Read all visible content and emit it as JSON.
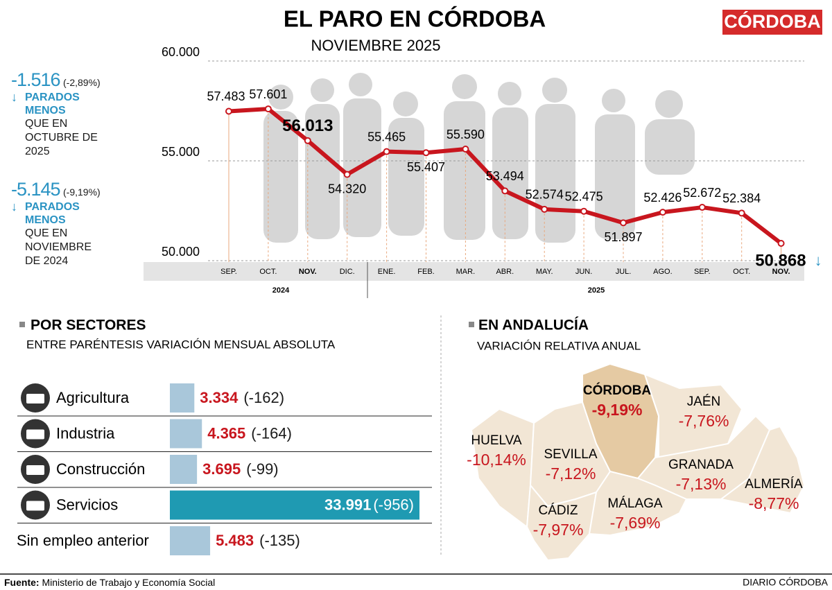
{
  "header": {
    "title": "EL PARO EN CÓRDOBA",
    "subtitle": "NOVIEMBRE 2025",
    "logo": "CÓRDOBA"
  },
  "summary": [
    {
      "value": "-1.516",
      "percent": "(-2,89%)",
      "label": "PARADOS MENOS",
      "detail": "QUE EN OCTUBRE DE 2025"
    },
    {
      "value": "-5.145",
      "percent": "(-9,19%)",
      "label": "PARADOS MENOS",
      "detail": "QUE EN NOVIEMBRE DE 2024"
    }
  ],
  "chart_data": [
    {
      "type": "line",
      "categories": [
        "SEP.",
        "OCT.",
        "NOV.",
        "DIC.",
        "ENE.",
        "FEB.",
        "MAR.",
        "ABR.",
        "MAY.",
        "JUN.",
        "JUL.",
        "AGO.",
        "SEP.",
        "OCT.",
        "NOV."
      ],
      "groups": [
        "2024",
        "2025"
      ],
      "series": [
        {
          "color": "#c8161e",
          "values": [
            57483,
            57601,
            56013,
            54320,
            55465,
            55407,
            55590,
            53494,
            52574,
            52475,
            51897,
            52426,
            52672,
            52384,
            50868
          ],
          "value_labels": [
            "57.483",
            "57.601",
            "56.013",
            "54.320",
            "55.465",
            "55.407",
            "55.590",
            "53.494",
            "52.574",
            "52.475",
            "51.897",
            "52.426",
            "52.672",
            "52.384",
            "50.868"
          ]
        }
      ],
      "ylim": [
        50000,
        60000
      ],
      "yticks": [
        {
          "value": 50000,
          "label": "50.000"
        },
        {
          "value": 55000,
          "label": "55.000"
        },
        {
          "value": 60000,
          "label": "60.000"
        }
      ],
      "grid": true
    },
    {
      "type": "hbar",
      "title": "POR SECTORES",
      "subtitle": "ENTRE PARÉNTESIS VARIACIÓN MENSUAL ABSOLUTA",
      "categories": [
        "Agricultura",
        "Industria",
        "Construcción",
        "Servicios",
        "Sin empleo anterior"
      ],
      "values": [
        3334,
        4365,
        3695,
        33991,
        5483
      ],
      "value_labels": [
        "3.334",
        "4.365",
        "3.695",
        "33.991",
        "5.483"
      ],
      "change_labels": [
        "(-162)",
        "(-164)",
        "(-99)",
        "(-956)",
        "(-135)"
      ],
      "color": "#a9c7da",
      "highlight_color": "#1f9ab2"
    }
  ],
  "map": {
    "title": "EN ANDALUCÍA",
    "subtitle": "VARIACIÓN RELATIVA ANUAL",
    "regions": [
      {
        "name": "HUELVA",
        "value": "-10,14%"
      },
      {
        "name": "SEVILLA",
        "value": "-7,12%"
      },
      {
        "name": "CÓRDOBA",
        "value": "-9,19%"
      },
      {
        "name": "JAÉN",
        "value": "-7,76%"
      },
      {
        "name": "GRANADA",
        "value": "-7,13%"
      },
      {
        "name": "ALMERÍA",
        "value": "-8,77%"
      },
      {
        "name": "CÁDIZ",
        "value": "-7,97%"
      },
      {
        "name": "MÁLAGA",
        "value": "-7,69%"
      }
    ]
  },
  "footer": {
    "source_label": "Fuente:",
    "source": "Ministerio de Trabajo y Economía Social",
    "credit": "DIARIO CÓRDOBA"
  }
}
